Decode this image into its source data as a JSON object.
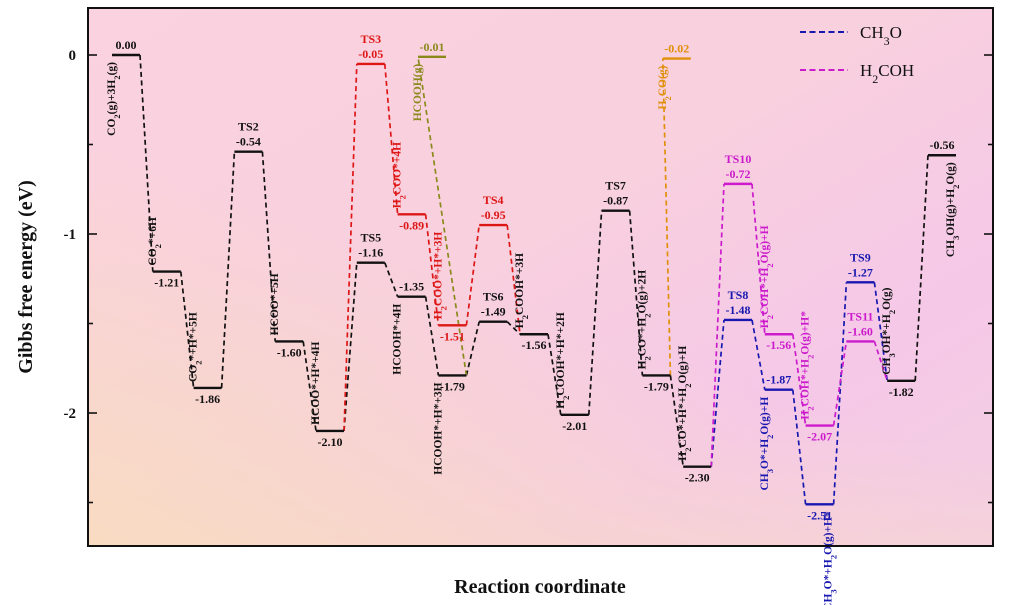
{
  "chart_data": {
    "type": "line",
    "xlabel": "Reaction coordinate",
    "ylabel": "Gibbs free energy (eV)",
    "ylim": [
      -2.7,
      0.25
    ],
    "yticks": [
      0,
      -1,
      -2
    ],
    "ytick_labels": [
      "0",
      "-1",
      "-2"
    ],
    "colors": {
      "black": "#111111",
      "red": "#dd1616",
      "olive": "#8a8a1c",
      "orange": "#e0900a",
      "blue": "#1818b0",
      "magenta": "#cc1acc"
    },
    "legend": [
      {
        "prefix": "CH",
        "sub": "3",
        "suffix": "O",
        "color": "blue"
      },
      {
        "prefix": "H",
        "sub": "2",
        "suffix": "COH",
        "color": "magenta"
      }
    ],
    "levels": [
      {
        "id": "L0",
        "x": 0,
        "y": 0.0,
        "value": "0.00",
        "color": "black",
        "valpos": "above",
        "state": [
          [
            "CO"
          ],
          [
            "2",
            "sub"
          ],
          [
            "(g)+3H"
          ],
          [
            "2",
            "sub"
          ],
          [
            "(g)"
          ]
        ],
        "spos": "below-left"
      },
      {
        "id": "L1",
        "x": 1,
        "y": -1.21,
        "value": "-1.21",
        "color": "black",
        "valpos": "below",
        "state": [
          [
            "CO"
          ],
          [
            "2",
            "sub"
          ],
          [
            "*+6H"
          ]
        ],
        "spos": "above-left"
      },
      {
        "id": "L2",
        "x": 2,
        "y": -1.86,
        "value": "-1.86",
        "color": "black",
        "valpos": "below",
        "state": [
          [
            "CO"
          ],
          [
            "2",
            "sub"
          ],
          [
            "*+H*+5H"
          ]
        ],
        "spos": "above-left"
      },
      {
        "id": "TS2",
        "x": 3,
        "y": -0.54,
        "value": "-0.54",
        "color": "black",
        "valpos": "above",
        "tslabel": "TS2"
      },
      {
        "id": "L3",
        "x": 4,
        "y": -1.6,
        "value": "-1.60",
        "color": "black",
        "valpos": "below",
        "state": [
          [
            "HCOO*+5H"
          ]
        ],
        "spos": "above-left"
      },
      {
        "id": "L4",
        "x": 5,
        "y": -2.1,
        "value": "-2.10",
        "color": "black",
        "valpos": "below",
        "state": [
          [
            "HCOO*+H*+4H"
          ]
        ],
        "spos": "above-left"
      },
      {
        "id": "TS5",
        "x": 6,
        "y": -1.16,
        "value": "-1.16",
        "color": "black",
        "valpos": "above",
        "tslabel": "TS5"
      },
      {
        "id": "TS3",
        "x": 6,
        "y": -0.05,
        "value": "-0.05",
        "color": "red",
        "valpos": "above",
        "tslabel": "TS3"
      },
      {
        "id": "L5",
        "x": 7,
        "y": -1.35,
        "value": "-1.35",
        "color": "black",
        "valpos": "above",
        "state": [
          [
            "HCOOH*+4H"
          ]
        ],
        "spos": "below-left"
      },
      {
        "id": "L5r",
        "x": 7,
        "y": -0.89,
        "value": "-0.89",
        "color": "red",
        "valpos": "below",
        "state": [
          [
            "H"
          ],
          [
            "2",
            "sub"
          ],
          [
            "COO*+4H"
          ]
        ],
        "spos": "above-left"
      },
      {
        "id": "HCOOHg",
        "x": 7.5,
        "y": -0.01,
        "value": "-0.01",
        "color": "olive",
        "valpos": "above",
        "state": [
          [
            "HCOOH(g)"
          ]
        ],
        "spos": "below-left"
      },
      {
        "id": "L6",
        "x": 8,
        "y": -1.79,
        "value": "-1.79",
        "color": "black",
        "valpos": "below",
        "state": [
          [
            "HCOOH*+H*+3H"
          ]
        ],
        "spos": "below-left"
      },
      {
        "id": "L6r",
        "x": 8,
        "y": -1.51,
        "value": "-1.51",
        "color": "red",
        "valpos": "below",
        "state": [
          [
            "H"
          ],
          [
            "2",
            "sub"
          ],
          [
            "COO*+H*+3H"
          ]
        ],
        "spos": "above-left"
      },
      {
        "id": "TS6",
        "x": 9,
        "y": -1.49,
        "value": "-1.49",
        "color": "black",
        "valpos": "above",
        "tslabel": "TS6"
      },
      {
        "id": "TS4",
        "x": 9,
        "y": -0.95,
        "value": "-0.95",
        "color": "red",
        "valpos": "above",
        "tslabel": "TS4"
      },
      {
        "id": "L7",
        "x": 10,
        "y": -1.56,
        "value": "-1.56",
        "color": "black",
        "valpos": "below",
        "state": [
          [
            "H"
          ],
          [
            "2",
            "sub"
          ],
          [
            "COOH*+3H"
          ]
        ],
        "spos": "above-left"
      },
      {
        "id": "L8",
        "x": 11,
        "y": -2.01,
        "value": "-2.01",
        "color": "black",
        "valpos": "below",
        "state": [
          [
            "H"
          ],
          [
            "2",
            "sub"
          ],
          [
            "COOH*+H*+2H"
          ]
        ],
        "spos": "above-left"
      },
      {
        "id": "TS7",
        "x": 12,
        "y": -0.87,
        "value": "-0.87",
        "color": "black",
        "valpos": "above",
        "tslabel": "TS7"
      },
      {
        "id": "L9",
        "x": 13,
        "y": -1.79,
        "value": "-1.79",
        "color": "black",
        "valpos": "below",
        "state": [
          [
            "H"
          ],
          [
            "2",
            "sub"
          ],
          [
            "CO*+H"
          ],
          [
            "2",
            "sub"
          ],
          [
            "O(g)+2H"
          ]
        ],
        "spos": "above-left"
      },
      {
        "id": "H2COg",
        "x": 13.5,
        "y": -0.02,
        "value": "-0.02",
        "color": "orange",
        "valpos": "above",
        "state": [
          [
            "H"
          ],
          [
            "2",
            "sub"
          ],
          [
            "CO(g)"
          ]
        ],
        "spos": "below-left"
      },
      {
        "id": "L10",
        "x": 14,
        "y": -2.3,
        "value": "-2.30",
        "color": "black",
        "valpos": "below",
        "state": [
          [
            "H"
          ],
          [
            "2",
            "sub"
          ],
          [
            "CO*+H*+H"
          ],
          [
            "2",
            "sub"
          ],
          [
            "O(g)+H"
          ]
        ],
        "spos": "above-left"
      },
      {
        "id": "TS8",
        "x": 15,
        "y": -1.48,
        "value": "-1.48",
        "color": "blue",
        "valpos": "above",
        "tslabel": "TS8"
      },
      {
        "id": "TS10",
        "x": 15,
        "y": -0.72,
        "value": "-0.72",
        "color": "magenta",
        "valpos": "above",
        "tslabel": "TS10"
      },
      {
        "id": "L11b",
        "x": 16,
        "y": -1.87,
        "value": "-1.87",
        "color": "blue",
        "valpos": "above",
        "state": [
          [
            "CH"
          ],
          [
            "3",
            "sub"
          ],
          [
            "O*+H"
          ],
          [
            "2",
            "sub"
          ],
          [
            "O(g)+H"
          ]
        ],
        "spos": "below-left"
      },
      {
        "id": "L11m",
        "x": 16,
        "y": -1.56,
        "value": "-1.56",
        "color": "magenta",
        "valpos": "below",
        "state": [
          [
            "H"
          ],
          [
            "2",
            "sub"
          ],
          [
            "COH*+H"
          ],
          [
            "2",
            "sub"
          ],
          [
            "O(g)+H"
          ]
        ],
        "spos": "above-left"
      },
      {
        "id": "L12b",
        "x": 17,
        "y": -2.51,
        "value": "-2.51",
        "color": "blue",
        "valpos": "below",
        "state": [
          [
            "CH"
          ],
          [
            "3",
            "sub"
          ],
          [
            "O*+H"
          ],
          [
            "2",
            "sub"
          ],
          [
            "O(g)+H*"
          ]
        ],
        "spos": "below-right"
      },
      {
        "id": "L12m",
        "x": 17,
        "y": -2.07,
        "value": "-2.07",
        "color": "magenta",
        "valpos": "below",
        "state": [
          [
            "H"
          ],
          [
            "2",
            "sub"
          ],
          [
            "COH*+H"
          ],
          [
            "2",
            "sub"
          ],
          [
            "O(g)+H*"
          ]
        ],
        "spos": "above-left"
      },
      {
        "id": "TS9",
        "x": 18,
        "y": -1.27,
        "value": "-1.27",
        "color": "blue",
        "valpos": "above",
        "tslabel": "TS9"
      },
      {
        "id": "TS11",
        "x": 18,
        "y": -1.6,
        "value": "-1.60",
        "color": "magenta",
        "valpos": "above",
        "tslabel": "TS11"
      },
      {
        "id": "L13",
        "x": 19,
        "y": -1.82,
        "value": "-1.82",
        "color": "black",
        "valpos": "below",
        "state": [
          [
            "CH"
          ],
          [
            "3",
            "sub"
          ],
          [
            "OH*+H"
          ],
          [
            "2",
            "sub"
          ],
          [
            "O(g)"
          ]
        ],
        "spos": "above-left"
      },
      {
        "id": "L14",
        "x": 20,
        "y": -0.56,
        "value": "-0.56",
        "color": "black",
        "valpos": "above",
        "state": [
          [
            "CH"
          ],
          [
            "3",
            "sub"
          ],
          [
            "OH(g)+H"
          ],
          [
            "2",
            "sub"
          ],
          [
            "O(g)"
          ]
        ],
        "spos": "below-right"
      }
    ],
    "connections": [
      [
        "L0",
        "L1",
        "black"
      ],
      [
        "L1",
        "L2",
        "black"
      ],
      [
        "L2",
        "TS2",
        "black"
      ],
      [
        "TS2",
        "L3",
        "black"
      ],
      [
        "L3",
        "L4",
        "black"
      ],
      [
        "L4",
        "TS5",
        "black"
      ],
      [
        "TS5",
        "L5",
        "black"
      ],
      [
        "L5",
        "L6",
        "black"
      ],
      [
        "L6",
        "TS6",
        "black"
      ],
      [
        "TS6",
        "L7",
        "black"
      ],
      [
        "L7",
        "L8",
        "black"
      ],
      [
        "L8",
        "TS7",
        "black"
      ],
      [
        "TS7",
        "L9",
        "black"
      ],
      [
        "L9",
        "L10",
        "black"
      ],
      [
        "L4",
        "TS3",
        "red"
      ],
      [
        "TS3",
        "L5r",
        "red"
      ],
      [
        "L5r",
        "L6r",
        "red"
      ],
      [
        "L6r",
        "TS4",
        "red"
      ],
      [
        "TS4",
        "L7",
        "red"
      ],
      [
        "L6",
        "HCOOHg",
        "olive"
      ],
      [
        "L9",
        "H2COg",
        "orange"
      ],
      [
        "L10",
        "TS8",
        "blue"
      ],
      [
        "TS8",
        "L11b",
        "blue"
      ],
      [
        "L11b",
        "L12b",
        "blue"
      ],
      [
        "L12b",
        "TS9",
        "blue"
      ],
      [
        "TS9",
        "L13",
        "blue"
      ],
      [
        "L10",
        "TS10",
        "magenta"
      ],
      [
        "TS10",
        "L11m",
        "magenta"
      ],
      [
        "L11m",
        "L12m",
        "magenta"
      ],
      [
        "L12m",
        "TS11",
        "magenta"
      ],
      [
        "TS11",
        "L13",
        "magenta"
      ],
      [
        "L13",
        "L14",
        "black"
      ]
    ]
  }
}
